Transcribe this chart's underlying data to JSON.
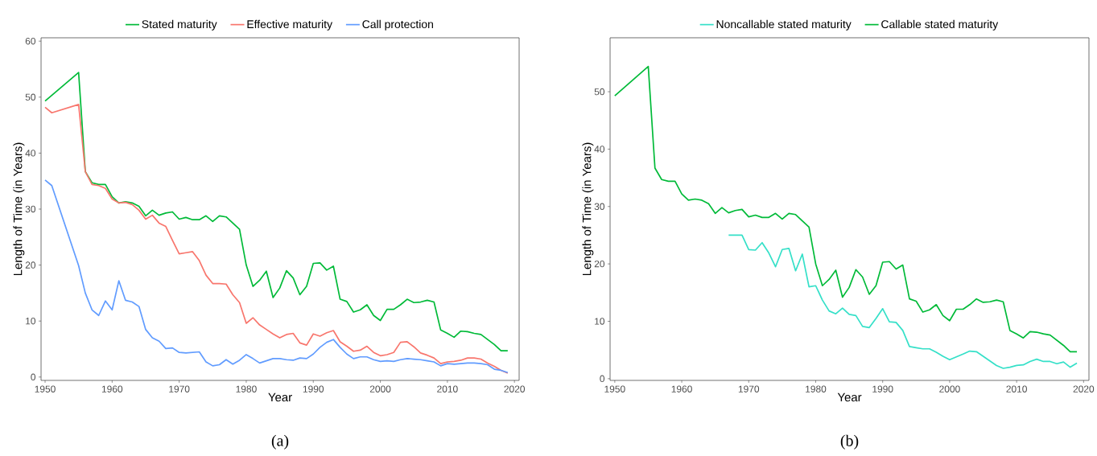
{
  "chart_data": [
    {
      "type": "line",
      "xlabel": "Year",
      "ylabel": "Length of Time (in Years)",
      "legend": "top",
      "annotations": [
        "(a)"
      ],
      "xlim": [
        1949.4,
        2020.7
      ],
      "ylim": [
        -0.6,
        60.6
      ],
      "xticks": [
        1950,
        1960,
        1970,
        1980,
        1990,
        2000,
        2010,
        2020
      ],
      "yticks": [
        0,
        10,
        20,
        30,
        40,
        50,
        60
      ],
      "series": [
        {
          "name": "Stated maturity",
          "color": "#00ba38",
          "x": [
            1950,
            1955,
            1956,
            1957,
            1958,
            1959,
            1960,
            1961,
            1962,
            1963,
            1964,
            1965,
            1966,
            1967,
            1968,
            1969,
            1970,
            1971,
            1972,
            1973,
            1974,
            1975,
            1976,
            1977,
            1978,
            1979,
            1980,
            1981,
            1982,
            1983,
            1984,
            1985,
            1986,
            1987,
            1988,
            1989,
            1990,
            1991,
            1992,
            1993,
            1994,
            1995,
            1996,
            1997,
            1998,
            1999,
            2000,
            2001,
            2002,
            2003,
            2004,
            2005,
            2006,
            2007,
            2008,
            2009,
            2010,
            2011,
            2012,
            2013,
            2014,
            2015,
            2016,
            2017,
            2018,
            2019
          ],
          "values": [
            49.3,
            54.4,
            36.7,
            34.7,
            34.4,
            34.4,
            32.2,
            31.1,
            31.3,
            31.1,
            30.5,
            28.8,
            29.8,
            28.9,
            29.3,
            29.5,
            28.2,
            28.5,
            28.1,
            28.1,
            28.8,
            27.8,
            28.8,
            28.6,
            27.5,
            26.4,
            20.0,
            16.2,
            17.3,
            18.9,
            14.2,
            15.9,
            19.0,
            17.7,
            14.7,
            16.2,
            20.3,
            20.4,
            19.1,
            19.8,
            13.9,
            13.5,
            11.6,
            12.0,
            12.9,
            11.0,
            10.1,
            12.1,
            12.1,
            12.9,
            13.9,
            13.3,
            13.4,
            13.7,
            13.4,
            8.4,
            7.8,
            7.1,
            8.2,
            8.1,
            7.8,
            7.6,
            6.7,
            5.8,
            4.7,
            4.7
          ]
        },
        {
          "name": "Effective maturity",
          "color": "#f8766d",
          "x": [
            1950,
            1951,
            1955,
            1956,
            1957,
            1958,
            1959,
            1960,
            1961,
            1962,
            1963,
            1964,
            1965,
            1966,
            1967,
            1968,
            1969,
            1970,
            1971,
            1972,
            1973,
            1974,
            1975,
            1976,
            1977,
            1978,
            1979,
            1980,
            1981,
            1982,
            1983,
            1984,
            1985,
            1986,
            1987,
            1988,
            1989,
            1990,
            1991,
            1992,
            1993,
            1994,
            1995,
            1996,
            1997,
            1998,
            1999,
            2000,
            2001,
            2002,
            2003,
            2004,
            2005,
            2006,
            2007,
            2008,
            2009,
            2010,
            2011,
            2012,
            2013,
            2014,
            2015,
            2016,
            2017,
            2018,
            2019
          ],
          "values": [
            48.2,
            47.2,
            48.7,
            36.7,
            34.4,
            34.2,
            33.7,
            31.8,
            31.1,
            31.2,
            30.8,
            29.8,
            28.2,
            28.9,
            27.5,
            26.9,
            24.4,
            22.0,
            22.2,
            22.4,
            20.8,
            18.2,
            16.7,
            16.7,
            16.6,
            14.7,
            13.3,
            9.6,
            10.6,
            9.3,
            8.5,
            7.7,
            7.0,
            7.6,
            7.8,
            6.1,
            5.7,
            7.7,
            7.3,
            7.9,
            8.3,
            6.3,
            5.5,
            4.6,
            4.8,
            5.5,
            4.4,
            3.8,
            4.0,
            4.4,
            6.2,
            6.3,
            5.4,
            4.3,
            3.9,
            3.4,
            2.4,
            2.7,
            2.8,
            3.0,
            3.4,
            3.4,
            3.2,
            2.5,
            1.9,
            1.2,
            0.7
          ]
        },
        {
          "name": "Call protection",
          "color": "#619cff",
          "x": [
            1950,
            1951,
            1955,
            1956,
            1957,
            1958,
            1959,
            1960,
            1961,
            1962,
            1963,
            1964,
            1965,
            1966,
            1967,
            1968,
            1969,
            1970,
            1971,
            1972,
            1973,
            1974,
            1975,
            1976,
            1977,
            1978,
            1979,
            1980,
            1981,
            1982,
            1983,
            1984,
            1985,
            1986,
            1987,
            1988,
            1989,
            1990,
            1991,
            1992,
            1993,
            1994,
            1995,
            1996,
            1997,
            1998,
            1999,
            2000,
            2001,
            2002,
            2003,
            2004,
            2005,
            2006,
            2007,
            2008,
            2009,
            2010,
            2011,
            2012,
            2013,
            2014,
            2015,
            2016,
            2017,
            2018,
            2019
          ],
          "values": [
            35.2,
            34.2,
            19.9,
            15.0,
            12.0,
            11.0,
            13.6,
            12.0,
            17.2,
            13.7,
            13.4,
            12.6,
            8.5,
            7.0,
            6.4,
            5.1,
            5.2,
            4.4,
            4.3,
            4.4,
            4.5,
            2.7,
            2.0,
            2.2,
            3.1,
            2.3,
            3.0,
            4.0,
            3.3,
            2.5,
            2.9,
            3.3,
            3.3,
            3.1,
            3.0,
            3.4,
            3.3,
            4.1,
            5.3,
            6.2,
            6.7,
            5.3,
            4.1,
            3.3,
            3.6,
            3.6,
            3.1,
            2.8,
            2.9,
            2.8,
            3.1,
            3.3,
            3.2,
            3.1,
            2.9,
            2.7,
            2.0,
            2.4,
            2.3,
            2.4,
            2.5,
            2.5,
            2.4,
            2.2,
            1.4,
            1.2,
            0.8
          ]
        }
      ]
    },
    {
      "type": "line",
      "xlabel": "Year",
      "ylabel": "Length of Time (in Years)",
      "legend": "top",
      "annotations": [
        "(b)"
      ],
      "xlim": [
        1949.3,
        2020.8
      ],
      "ylim": [
        -0.3,
        59.4
      ],
      "xticks": [
        1950,
        1960,
        1970,
        1980,
        1990,
        2000,
        2010,
        2020
      ],
      "yticks": [
        0,
        10,
        20,
        30,
        40,
        50
      ],
      "series": [
        {
          "name": "Noncallable stated maturity",
          "color": "#35e0c8",
          "x": [
            1967,
            1968,
            1969,
            1970,
            1971,
            1972,
            1973,
            1974,
            1975,
            1976,
            1977,
            1978,
            1979,
            1980,
            1981,
            1982,
            1983,
            1984,
            1985,
            1986,
            1987,
            1988,
            1989,
            1990,
            1991,
            1992,
            1993,
            1994,
            1995,
            1996,
            1997,
            1998,
            1999,
            2000,
            2001,
            2002,
            2003,
            2004,
            2005,
            2006,
            2007,
            2008,
            2009,
            2010,
            2011,
            2012,
            2013,
            2014,
            2015,
            2016,
            2017,
            2018,
            2019
          ],
          "values": [
            25.0,
            25.0,
            25.0,
            22.5,
            22.4,
            23.7,
            21.9,
            19.5,
            22.5,
            22.7,
            18.8,
            21.7,
            16.0,
            16.2,
            13.7,
            11.8,
            11.3,
            12.3,
            11.2,
            11.0,
            9.1,
            8.9,
            10.5,
            12.2,
            9.9,
            9.8,
            8.4,
            5.6,
            5.4,
            5.2,
            5.2,
            4.6,
            3.9,
            3.3,
            3.8,
            4.3,
            4.8,
            4.7,
            3.9,
            3.1,
            2.3,
            1.8,
            2.0,
            2.3,
            2.4,
            3.0,
            3.4,
            3.0,
            3.0,
            2.6,
            2.9,
            2.0,
            2.7
          ]
        },
        {
          "name": "Callable stated maturity",
          "color": "#00ba38",
          "x": [
            1950,
            1955,
            1956,
            1957,
            1958,
            1959,
            1960,
            1961,
            1962,
            1963,
            1964,
            1965,
            1966,
            1967,
            1968,
            1969,
            1970,
            1971,
            1972,
            1973,
            1974,
            1975,
            1976,
            1977,
            1978,
            1979,
            1980,
            1981,
            1982,
            1983,
            1984,
            1985,
            1986,
            1987,
            1988,
            1989,
            1990,
            1991,
            1992,
            1993,
            1994,
            1995,
            1996,
            1997,
            1998,
            1999,
            2000,
            2001,
            2002,
            2003,
            2004,
            2005,
            2006,
            2007,
            2008,
            2009,
            2010,
            2011,
            2012,
            2013,
            2014,
            2015,
            2016,
            2017,
            2018,
            2019
          ],
          "values": [
            49.3,
            54.4,
            36.7,
            34.7,
            34.4,
            34.4,
            32.2,
            31.1,
            31.3,
            31.1,
            30.5,
            28.8,
            29.8,
            28.9,
            29.3,
            29.5,
            28.2,
            28.5,
            28.1,
            28.1,
            28.8,
            27.8,
            28.8,
            28.6,
            27.5,
            26.4,
            20.0,
            16.2,
            17.3,
            18.9,
            14.2,
            15.9,
            19.0,
            17.7,
            14.7,
            16.2,
            20.3,
            20.4,
            19.1,
            19.8,
            13.9,
            13.5,
            11.6,
            12.0,
            12.9,
            11.0,
            10.1,
            12.1,
            12.1,
            12.9,
            13.9,
            13.3,
            13.4,
            13.7,
            13.4,
            8.4,
            7.8,
            7.1,
            8.2,
            8.1,
            7.8,
            7.6,
            6.7,
            5.8,
            4.7,
            4.7
          ]
        }
      ]
    }
  ]
}
